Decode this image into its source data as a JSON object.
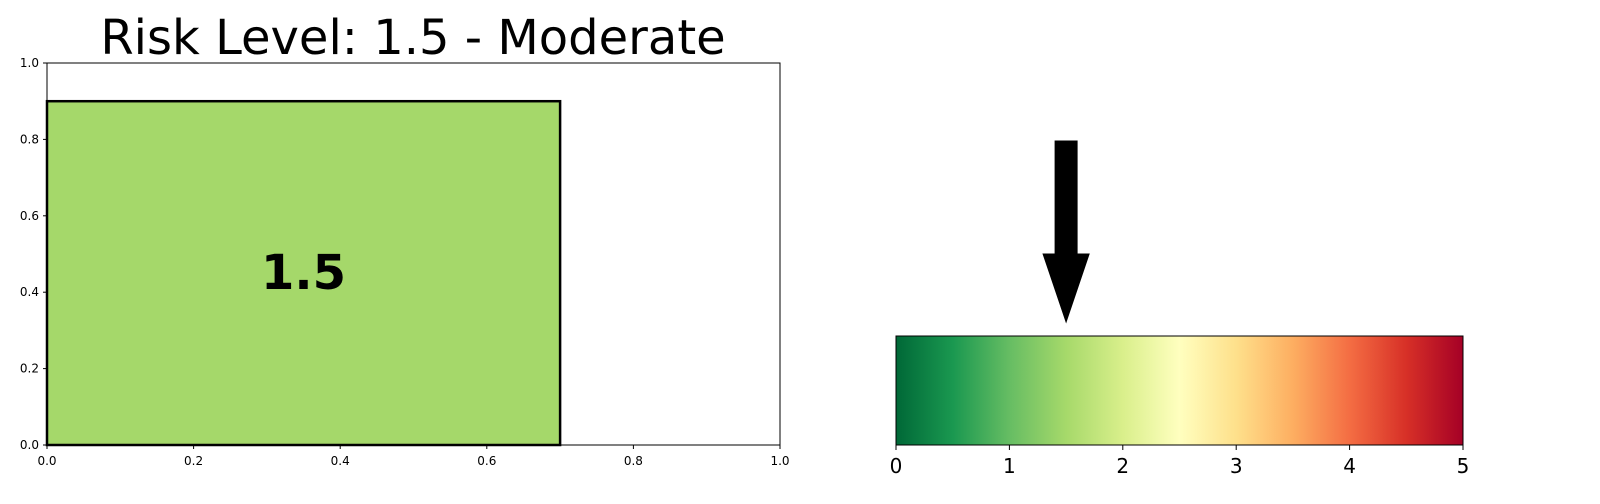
{
  "chart_data": [
    {
      "type": "bar",
      "title": "Risk Level: 1.5 - Moderate",
      "bar": {
        "x0": 0.0,
        "x1": 0.7,
        "y0": 0.0,
        "y1": 0.9,
        "color": "#a5d86a"
      },
      "value_label": "1.5",
      "xlim": [
        0,
        1
      ],
      "ylim": [
        0,
        1
      ],
      "xticks": [
        {
          "v": 0.0,
          "label": "0.0"
        },
        {
          "v": 0.2,
          "label": "0.2"
        },
        {
          "v": 0.4,
          "label": "0.4"
        },
        {
          "v": 0.6,
          "label": "0.6"
        },
        {
          "v": 0.8,
          "label": "0.8"
        },
        {
          "v": 1.0,
          "label": "1.0"
        }
      ],
      "yticks": [
        {
          "v": 0.0,
          "label": "0.0"
        },
        {
          "v": 0.2,
          "label": "0.2"
        },
        {
          "v": 0.4,
          "label": "0.4"
        },
        {
          "v": 0.6,
          "label": "0.6"
        },
        {
          "v": 0.8,
          "label": "0.8"
        },
        {
          "v": 1.0,
          "label": "1.0"
        }
      ],
      "grid": false
    },
    {
      "type": "heatmap",
      "colormap": "RdYlGn_r",
      "colormap_stops": [
        "#006837",
        "#1a9850",
        "#66bd63",
        "#a6d96a",
        "#d9ef8b",
        "#ffffbf",
        "#fee08b",
        "#fdae61",
        "#f46d43",
        "#d73027",
        "#a50026"
      ],
      "xlim": [
        0,
        5
      ],
      "marker_value": 1.5,
      "xticks": [
        {
          "v": 0,
          "label": "0"
        },
        {
          "v": 1,
          "label": "1"
        },
        {
          "v": 2,
          "label": "2"
        },
        {
          "v": 3,
          "label": "3"
        },
        {
          "v": 4,
          "label": "4"
        },
        {
          "v": 5,
          "label": "5"
        }
      ]
    }
  ]
}
